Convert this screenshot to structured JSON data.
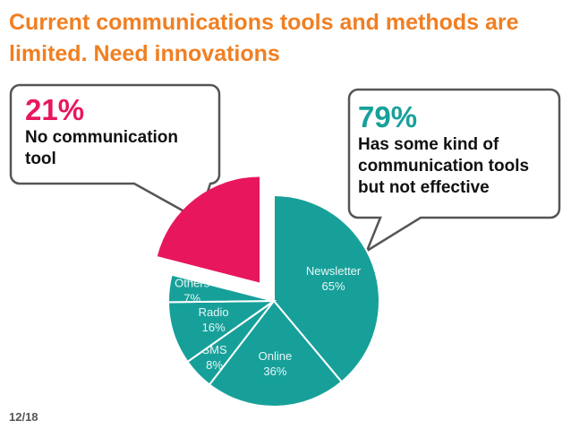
{
  "chart_data": {
    "type": "pie",
    "title": "Current communications tools and methods are limited. Need innovations",
    "categories": [
      "No communication tool",
      "Has some kind of communication tools but not effective"
    ],
    "values": [
      21,
      79
    ],
    "value_labels": [
      "21%",
      "79%"
    ],
    "colors": [
      "#e8175d",
      "#17a09a"
    ],
    "breakdown": {
      "categories": [
        "Newsletter",
        "Online",
        "SMS",
        "Radio",
        "Others"
      ],
      "values": [
        65,
        36,
        8,
        16,
        7
      ],
      "value_labels": [
        "65%",
        "36%",
        "8%",
        "16%",
        "7%"
      ]
    }
  },
  "footer": {
    "page": "12/18"
  }
}
